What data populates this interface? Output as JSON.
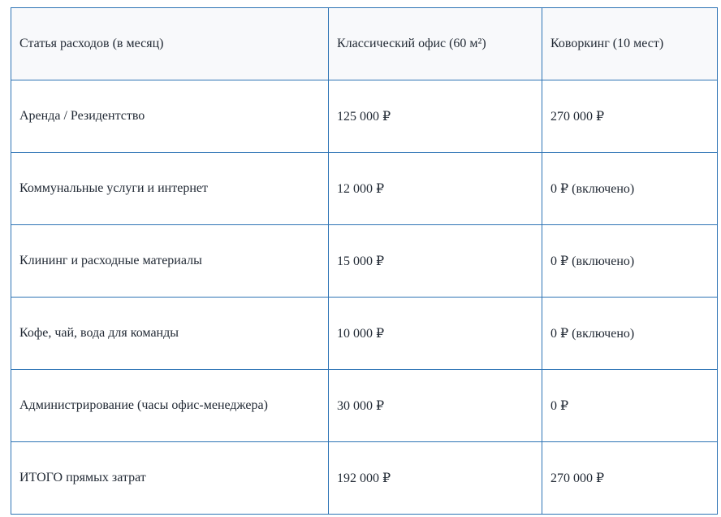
{
  "table": {
    "headers": [
      "Статья расходов (в месяц)",
      "Классический офис (60 м²)",
      "Коворкинг (10 мест)"
    ],
    "rows": [
      [
        "Аренда / Резидентство",
        "125 000 ₽",
        "270 000 ₽"
      ],
      [
        "Коммунальные услуги и интернет",
        "12 000 ₽",
        "0 ₽ (включено)"
      ],
      [
        "Клининг и расходные материалы",
        "15 000 ₽",
        "0 ₽ (включено)"
      ],
      [
        "Кофе, чай, вода для команды",
        "10 000 ₽",
        "0 ₽ (включено)"
      ],
      [
        "Администрирование (часы офис-менеджера)",
        "30 000 ₽",
        "0 ₽"
      ],
      [
        "ИТОГО прямых затрат",
        "192 000 ₽",
        "270 000 ₽"
      ]
    ]
  },
  "colors": {
    "border": "#2e74b5",
    "header_bg": "#f8f9fb",
    "text": "#222a35"
  }
}
